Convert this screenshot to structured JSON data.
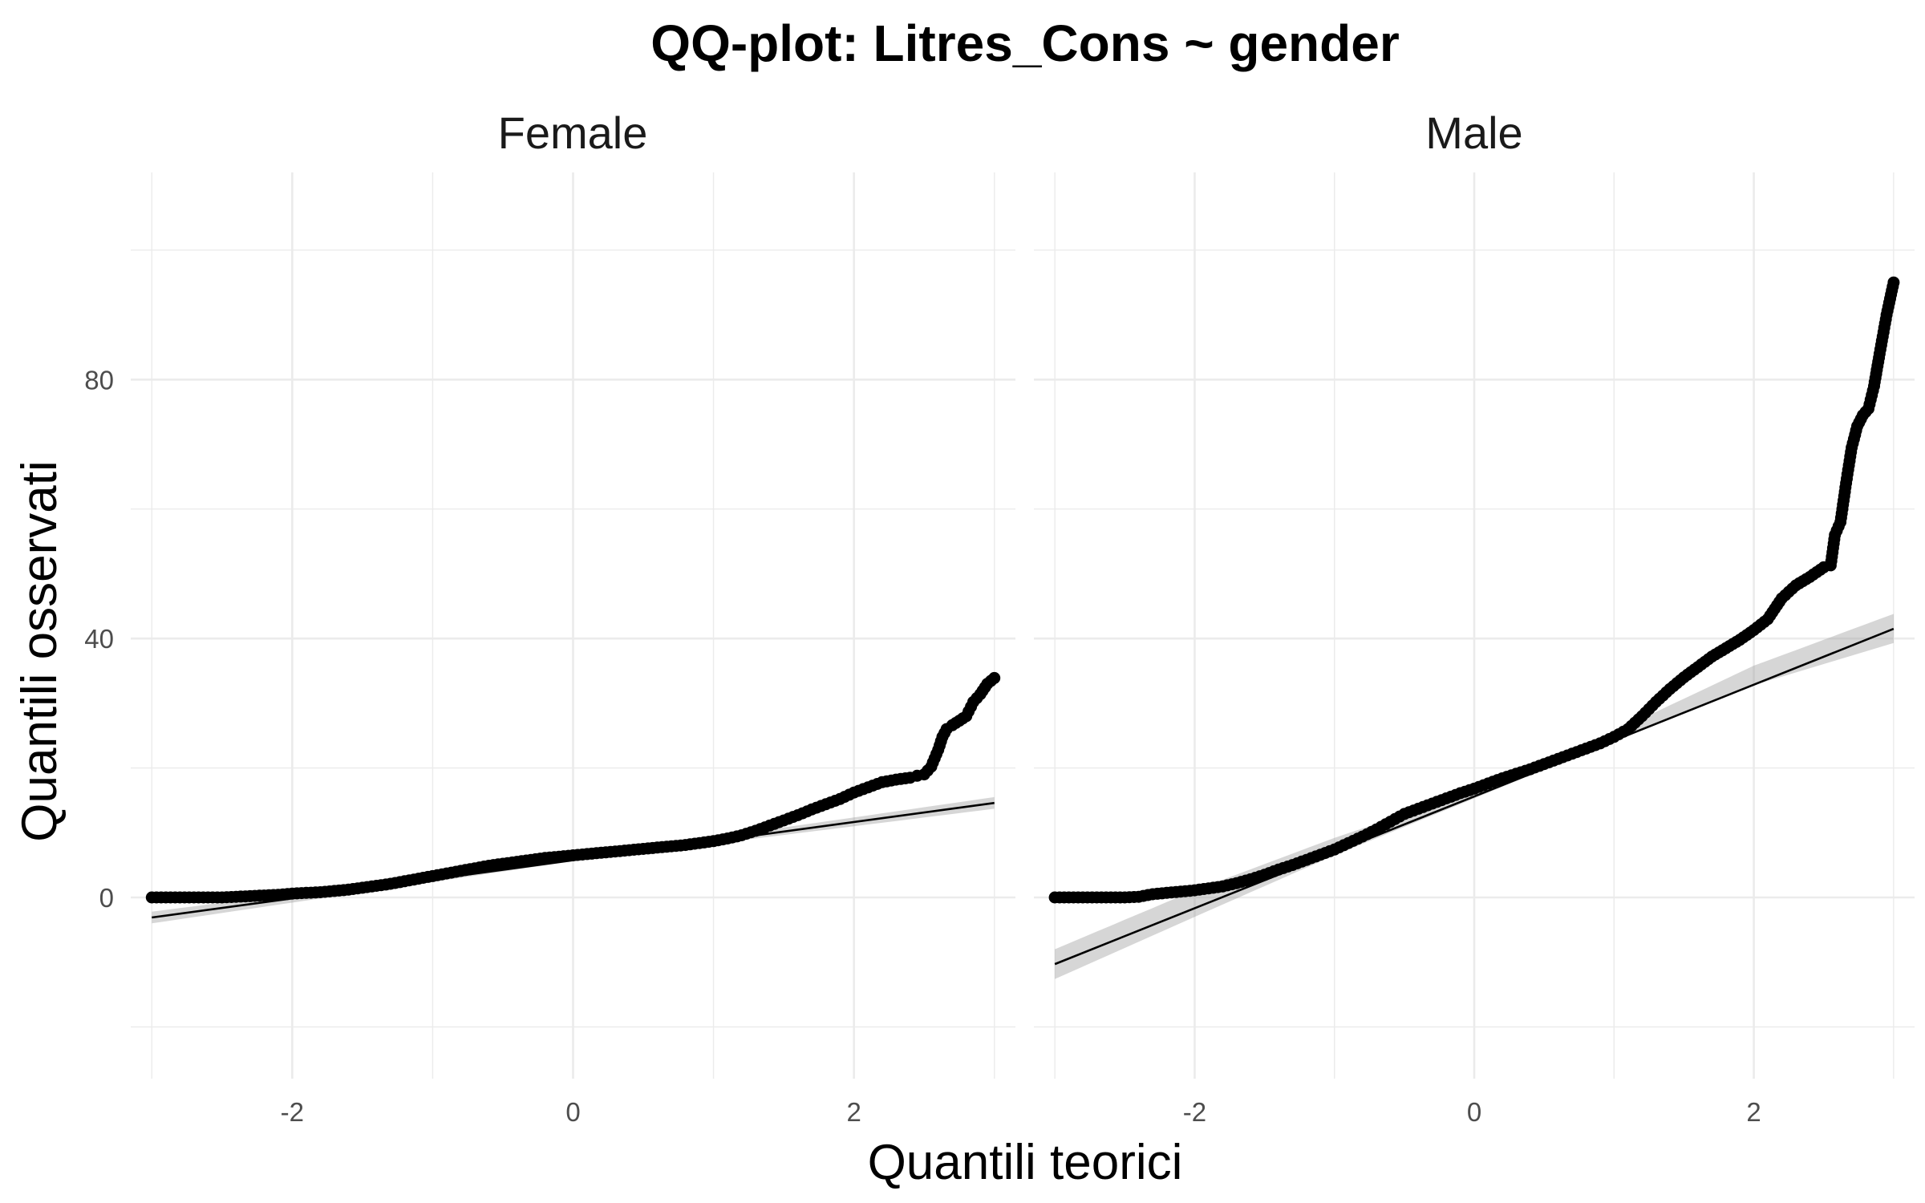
{
  "chart_data": {
    "type": "scatter",
    "title": "QQ-plot: Litres_Cons ~ gender",
    "xlabel": "Quantili teorici",
    "ylabel": "Quantili osservati",
    "xlim": [
      -3.15,
      3.15
    ],
    "ylim": [
      -28,
      112
    ],
    "x_ticks": [
      -2,
      0,
      2
    ],
    "x_tick_labels": [
      "-2",
      "0",
      "2"
    ],
    "y_ticks": [
      0,
      40,
      80
    ],
    "y_tick_labels": [
      "0",
      "40",
      "80"
    ],
    "grid": true,
    "legend": "none",
    "panels": [
      {
        "name": "Female",
        "ref_line": {
          "x": [
            -3,
            3
          ],
          "y": [
            -3.1,
            14.6
          ]
        },
        "ci_band": {
          "x": [
            -3,
            0,
            3
          ],
          "lower": [
            -4.0,
            5.6,
            13.7
          ],
          "upper": [
            -2.2,
            6.1,
            15.5
          ]
        },
        "points": {
          "x": [
            -3.0,
            -2.9,
            -2.8,
            -2.7,
            -2.6,
            -2.5,
            -2.4,
            -2.3,
            -2.2,
            -2.1,
            -2.0,
            -1.9,
            -1.8,
            -1.7,
            -1.6,
            -1.5,
            -1.4,
            -1.3,
            -1.2,
            -1.1,
            -1.0,
            -0.9,
            -0.8,
            -0.7,
            -0.6,
            -0.5,
            -0.4,
            -0.3,
            -0.2,
            -0.1,
            0.0,
            0.1,
            0.2,
            0.3,
            0.4,
            0.5,
            0.6,
            0.7,
            0.8,
            0.9,
            1.0,
            1.1,
            1.2,
            1.3,
            1.4,
            1.5,
            1.6,
            1.7,
            1.8,
            1.9,
            2.0,
            2.1,
            2.2,
            2.3,
            2.4,
            2.45,
            2.5,
            2.55,
            2.6,
            2.63,
            2.66,
            2.7,
            2.75,
            2.8,
            2.85,
            2.9,
            2.95,
            3.0
          ],
          "y": [
            0,
            0,
            0,
            0,
            0,
            0,
            0.1,
            0.2,
            0.3,
            0.4,
            0.6,
            0.7,
            0.8,
            1.0,
            1.2,
            1.5,
            1.8,
            2.1,
            2.5,
            2.9,
            3.3,
            3.7,
            4.1,
            4.5,
            4.9,
            5.2,
            5.5,
            5.8,
            6.1,
            6.3,
            6.5,
            6.7,
            6.9,
            7.1,
            7.3,
            7.5,
            7.7,
            7.9,
            8.1,
            8.4,
            8.7,
            9.1,
            9.6,
            10.3,
            11.1,
            11.9,
            12.7,
            13.6,
            14.4,
            15.2,
            16.2,
            17.0,
            17.8,
            18.2,
            18.5,
            18.8,
            19.0,
            20.2,
            22.8,
            24.8,
            26.0,
            26.6,
            27.3,
            28.0,
            30.2,
            31.4,
            33.0,
            33.9
          ]
        }
      },
      {
        "name": "Male",
        "ref_line": {
          "x": [
            -3,
            3
          ],
          "y": [
            -10.3,
            41.5
          ]
        },
        "ci_band": {
          "x": [
            -3,
            -2,
            -1,
            0,
            1,
            2,
            3
          ],
          "lower": [
            -12.6,
            -3.0,
            6.5,
            15.3,
            24.2,
            32.8,
            39.3
          ],
          "upper": [
            -8.0,
            1.1,
            9.2,
            16.5,
            25.6,
            35.8,
            43.8
          ]
        },
        "points": {
          "x": [
            -3.0,
            -2.9,
            -2.8,
            -2.7,
            -2.6,
            -2.5,
            -2.4,
            -2.3,
            -2.2,
            -2.1,
            -2.0,
            -1.9,
            -1.8,
            -1.7,
            -1.6,
            -1.5,
            -1.4,
            -1.3,
            -1.2,
            -1.1,
            -1.0,
            -0.9,
            -0.8,
            -0.7,
            -0.6,
            -0.5,
            -0.4,
            -0.3,
            -0.2,
            -0.1,
            0.0,
            0.1,
            0.2,
            0.3,
            0.4,
            0.5,
            0.6,
            0.7,
            0.8,
            0.9,
            1.0,
            1.1,
            1.2,
            1.3,
            1.4,
            1.5,
            1.6,
            1.7,
            1.8,
            1.9,
            2.0,
            2.1,
            2.2,
            2.3,
            2.4,
            2.5,
            2.55,
            2.58,
            2.62,
            2.66,
            2.7,
            2.74,
            2.78,
            2.82,
            2.86,
            2.9,
            2.95,
            3.0
          ],
          "y": [
            0,
            0,
            0,
            0,
            0,
            0,
            0.1,
            0.5,
            0.7,
            0.9,
            1.1,
            1.4,
            1.7,
            2.2,
            2.8,
            3.5,
            4.3,
            5.0,
            5.8,
            6.6,
            7.4,
            8.4,
            9.4,
            10.5,
            11.7,
            12.9,
            13.7,
            14.5,
            15.3,
            16.1,
            16.8,
            17.6,
            18.4,
            19.1,
            19.8,
            20.6,
            21.4,
            22.2,
            23.0,
            23.8,
            24.8,
            26.0,
            28.0,
            30.2,
            32.2,
            34.0,
            35.6,
            37.2,
            38.5,
            39.8,
            41.3,
            43.0,
            46.2,
            48.2,
            49.5,
            51.0,
            51.3,
            56.0,
            58.0,
            64.0,
            69.5,
            72.8,
            74.5,
            75.5,
            79.0,
            84.0,
            90.0,
            95.0
          ]
        }
      }
    ]
  }
}
